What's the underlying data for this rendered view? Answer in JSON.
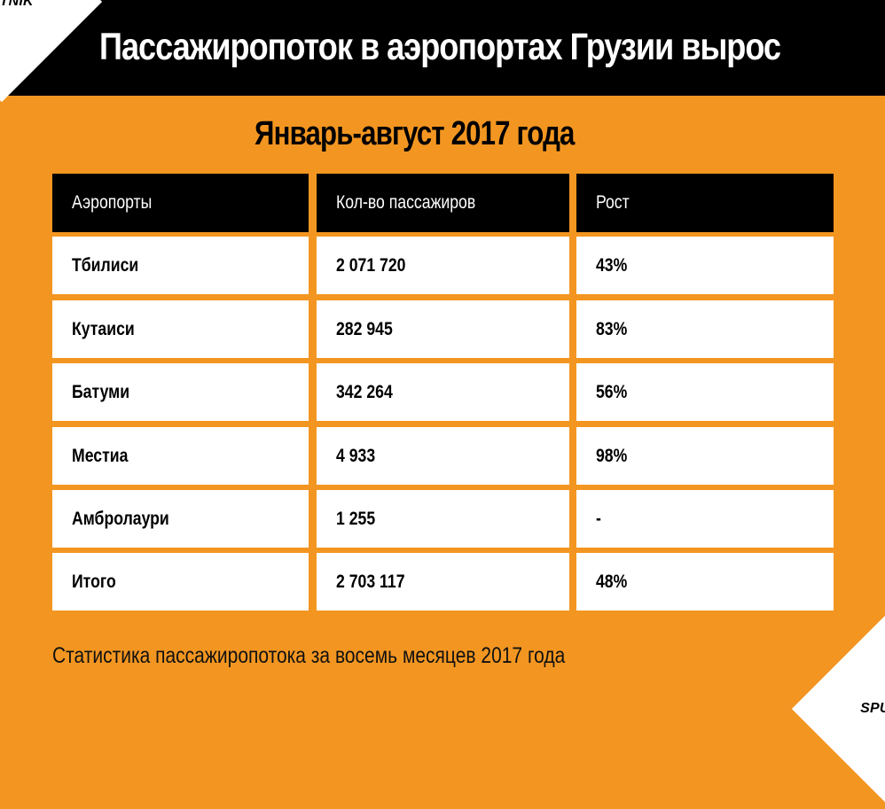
{
  "branding": {
    "logo_text": "SPUTNIK"
  },
  "title": "Пассажиропоток в аэропортах Грузии вырос",
  "subtitle": "Январь-август 2017 года",
  "colors": {
    "background": "#f39621",
    "header": "#000000",
    "header_text": "#ffffff",
    "row_background": "#ffffff",
    "row_text": "#000000"
  },
  "chart_data": {
    "type": "table",
    "title": "Пассажиропоток в аэропортах Грузии вырос",
    "subtitle": "Январь-август 2017 года",
    "columns": [
      "Аэропорты",
      "Кол-во пассажиров",
      "Рост"
    ],
    "rows": [
      [
        "Тбилиси",
        "2 071 720",
        "43%"
      ],
      [
        "Кутаиси",
        "282 945",
        "83%"
      ],
      [
        "Батуми",
        "342 264",
        "56%"
      ],
      [
        "Местиа",
        "4 933",
        "98%"
      ],
      [
        "Амбролаури",
        "1 255",
        "-"
      ],
      [
        "Итого",
        "2 703 117",
        "48%"
      ]
    ],
    "note": "Статистика пассажиропотока за восемь месяцев 2017 года"
  }
}
